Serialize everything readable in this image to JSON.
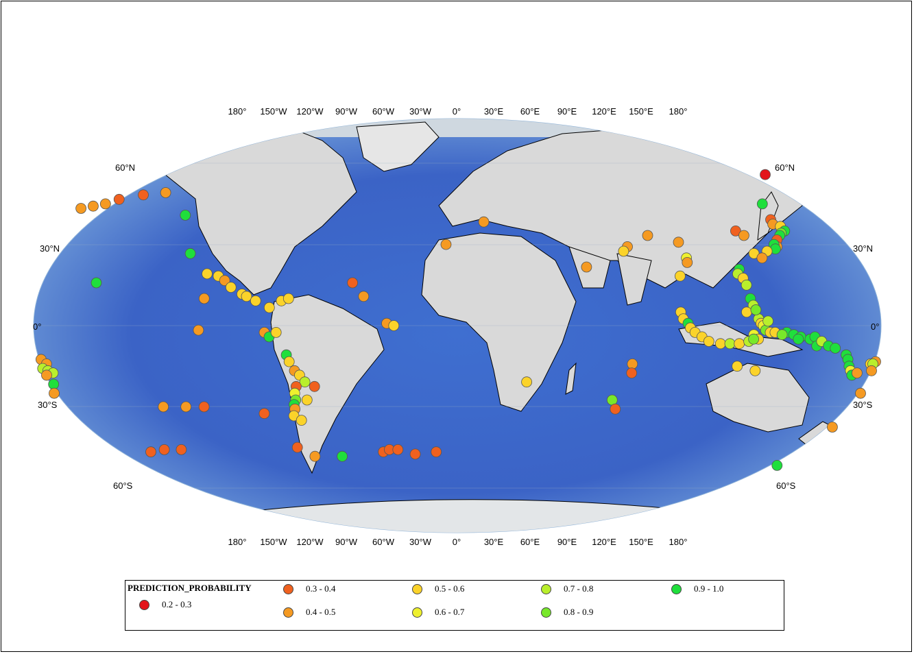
{
  "map": {
    "lon_labels_top": [
      "180°",
      "150°W",
      "120°W",
      "90°W",
      "60°W",
      "30°W",
      "0°",
      "30°E",
      "60°E",
      "90°E",
      "120°E",
      "150°E",
      "180°"
    ],
    "lon_labels_bottom": [
      "180°",
      "150°W",
      "120°W",
      "90°W",
      "60°W",
      "30°W",
      "0°",
      "30°E",
      "60°E",
      "90°E",
      "120°E",
      "150°E",
      "180°"
    ],
    "lat_labels_left": [
      "60°N",
      "30°N",
      "0°",
      "30°S",
      "60°S"
    ],
    "lat_labels_right": [
      "60°N",
      "30°N",
      "0°",
      "30°S",
      "60°S"
    ]
  },
  "legend": {
    "title": "PREDICTION_PROBABILITY",
    "items": [
      {
        "label": "0.2 - 0.3",
        "color": "#e3141b"
      },
      {
        "label": "0.3 - 0.4",
        "color": "#f0611f"
      },
      {
        "label": "0.4 - 0.5",
        "color": "#f59a22"
      },
      {
        "label": "0.5 - 0.6",
        "color": "#fbd32a"
      },
      {
        "label": "0.6 - 0.7",
        "color": "#eef02e"
      },
      {
        "label": "0.7 - 0.8",
        "color": "#b9ef2c"
      },
      {
        "label": "0.8 - 0.9",
        "color": "#78e82a"
      },
      {
        "label": "0.9 - 1.0",
        "color": "#1fdf3c"
      }
    ]
  },
  "points": [
    {
      "lon": 155,
      "lat": 67,
      "c": 0
    },
    {
      "lon": -160,
      "lat": 56,
      "c": 1
    },
    {
      "lon": -150,
      "lat": 58,
      "c": 1
    },
    {
      "lon": -140,
      "lat": 59,
      "c": 2
    },
    {
      "lon": -165,
      "lat": 54,
      "c": 2
    },
    {
      "lon": -170,
      "lat": 53,
      "c": 2
    },
    {
      "lon": -175,
      "lat": 52,
      "c": 2
    },
    {
      "lon": -125,
      "lat": 49,
      "c": 7
    },
    {
      "lon": -117,
      "lat": 32,
      "c": 7
    },
    {
      "lon": -155,
      "lat": 19,
      "c": 7
    },
    {
      "lon": -108,
      "lat": 23,
      "c": 3
    },
    {
      "lon": -103,
      "lat": 22,
      "c": 3
    },
    {
      "lon": -100,
      "lat": 20,
      "c": 2
    },
    {
      "lon": -97,
      "lat": 17,
      "c": 3
    },
    {
      "lon": -92,
      "lat": 14,
      "c": 3
    },
    {
      "lon": -90,
      "lat": 13,
      "c": 3
    },
    {
      "lon": -86,
      "lat": 11,
      "c": 3
    },
    {
      "lon": -80,
      "lat": 8,
      "c": 3
    },
    {
      "lon": -75,
      "lat": 11,
      "c": 3
    },
    {
      "lon": -72,
      "lat": 12,
      "c": 3
    },
    {
      "lon": -108,
      "lat": 12,
      "c": 2
    },
    {
      "lon": -110,
      "lat": -2,
      "c": 2
    },
    {
      "lon": -82,
      "lat": -3,
      "c": 2
    },
    {
      "lon": -80,
      "lat": -5,
      "c": 7
    },
    {
      "lon": -77,
      "lat": -3,
      "c": 3
    },
    {
      "lon": -73,
      "lat": -13,
      "c": 7
    },
    {
      "lon": -72,
      "lat": -16,
      "c": 3
    },
    {
      "lon": -70,
      "lat": -20,
      "c": 2
    },
    {
      "lon": -68,
      "lat": -22,
      "c": 3
    },
    {
      "lon": -66,
      "lat": -25,
      "c": 5
    },
    {
      "lon": -70,
      "lat": -27,
      "c": 1
    },
    {
      "lon": -62,
      "lat": -27,
      "c": 1
    },
    {
      "lon": -71,
      "lat": -30,
      "c": 4
    },
    {
      "lon": -71,
      "lat": -33,
      "c": 6
    },
    {
      "lon": -72,
      "lat": -35,
      "c": 7
    },
    {
      "lon": -72,
      "lat": -37,
      "c": 2
    },
    {
      "lon": -66,
      "lat": -33,
      "c": 3
    },
    {
      "lon": -73,
      "lat": -40,
      "c": 3
    },
    {
      "lon": -70,
      "lat": -42,
      "c": 3
    },
    {
      "lon": -86,
      "lat": -39,
      "c": 1
    },
    {
      "lon": -45,
      "lat": 19,
      "c": 1
    },
    {
      "lon": -40,
      "lat": 13,
      "c": 2
    },
    {
      "lon": -30,
      "lat": 1,
      "c": 2
    },
    {
      "lon": -27,
      "lat": 0,
      "c": 3
    },
    {
      "lon": -130,
      "lat": -36,
      "c": 2
    },
    {
      "lon": -120,
      "lat": -36,
      "c": 2
    },
    {
      "lon": -112,
      "lat": -36,
      "c": 1
    },
    {
      "lon": -145,
      "lat": -56,
      "c": 1
    },
    {
      "lon": -138,
      "lat": -55,
      "c": 1
    },
    {
      "lon": -130,
      "lat": -55,
      "c": 1
    },
    {
      "lon": -75,
      "lat": -54,
      "c": 1
    },
    {
      "lon": -68,
      "lat": -58,
      "c": 2
    },
    {
      "lon": -55,
      "lat": -58,
      "c": 7
    },
    {
      "lon": -35,
      "lat": -56,
      "c": 1
    },
    {
      "lon": -32,
      "lat": -55,
      "c": 1
    },
    {
      "lon": -28,
      "lat": -55,
      "c": 1
    },
    {
      "lon": -20,
      "lat": -57,
      "c": 1
    },
    {
      "lon": -10,
      "lat": -56,
      "c": 1
    },
    {
      "lon": -178,
      "lat": -15,
      "c": 2
    },
    {
      "lon": -176,
      "lat": -17,
      "c": 2
    },
    {
      "lon": -178,
      "lat": -19,
      "c": 5
    },
    {
      "lon": -176,
      "lat": -20,
      "c": 5
    },
    {
      "lon": -174,
      "lat": -21,
      "c": 5
    },
    {
      "lon": -177,
      "lat": -22,
      "c": 2
    },
    {
      "lon": -175,
      "lat": -26,
      "c": 7
    },
    {
      "lon": -176,
      "lat": -30,
      "c": 2
    },
    {
      "lon": 12,
      "lat": 46,
      "c": 2
    },
    {
      "lon": -5,
      "lat": 36,
      "c": 2
    },
    {
      "lon": 30,
      "lat": -25,
      "c": 3
    },
    {
      "lon": 68,
      "lat": -33,
      "c": 6
    },
    {
      "lon": 70,
      "lat": -37,
      "c": 1
    },
    {
      "lon": 75,
      "lat": -17,
      "c": 2
    },
    {
      "lon": 75,
      "lat": -21,
      "c": 1
    },
    {
      "lon": 56,
      "lat": 26,
      "c": 2
    },
    {
      "lon": 85,
      "lat": 40,
      "c": 2
    },
    {
      "lon": 98,
      "lat": 37,
      "c": 2
    },
    {
      "lon": 75,
      "lat": 35,
      "c": 2
    },
    {
      "lon": 73,
      "lat": 33,
      "c": 3
    },
    {
      "lon": 100,
      "lat": 30,
      "c": 4
    },
    {
      "lon": 100,
      "lat": 28,
      "c": 2
    },
    {
      "lon": 96,
      "lat": 22,
      "c": 3
    },
    {
      "lon": 143,
      "lat": 54,
      "c": 7
    },
    {
      "lon": 143,
      "lat": 47,
      "c": 1
    },
    {
      "lon": 143,
      "lat": 45,
      "c": 2
    },
    {
      "lon": 146,
      "lat": 44,
      "c": 3
    },
    {
      "lon": 147,
      "lat": 42,
      "c": 7
    },
    {
      "lon": 145,
      "lat": 41,
      "c": 6
    },
    {
      "lon": 144,
      "lat": 40,
      "c": 7
    },
    {
      "lon": 142,
      "lat": 38,
      "c": 1
    },
    {
      "lon": 141,
      "lat": 35,
      "c": 2
    },
    {
      "lon": 140,
      "lat": 36,
      "c": 7
    },
    {
      "lon": 140,
      "lat": 34,
      "c": 7
    },
    {
      "lon": 136,
      "lat": 33,
      "c": 3
    },
    {
      "lon": 130,
      "lat": 32,
      "c": 3
    },
    {
      "lon": 133,
      "lat": 30,
      "c": 2
    },
    {
      "lon": 125,
      "lat": 42,
      "c": 1
    },
    {
      "lon": 128,
      "lat": 40,
      "c": 2
    },
    {
      "lon": 122,
      "lat": 25,
      "c": 7
    },
    {
      "lon": 121,
      "lat": 23,
      "c": 5
    },
    {
      "lon": 123,
      "lat": 21,
      "c": 3
    },
    {
      "lon": 124,
      "lat": 18,
      "c": 5
    },
    {
      "lon": 125,
      "lat": 12,
      "c": 7
    },
    {
      "lon": 126,
      "lat": 9,
      "c": 5
    },
    {
      "lon": 127,
      "lat": 7,
      "c": 7
    },
    {
      "lon": 123,
      "lat": 6,
      "c": 3
    },
    {
      "lon": 128,
      "lat": 3,
      "c": 5
    },
    {
      "lon": 129,
      "lat": 1,
      "c": 3
    },
    {
      "lon": 130,
      "lat": 0,
      "c": 4
    },
    {
      "lon": 131,
      "lat": -2,
      "c": 6
    },
    {
      "lon": 133,
      "lat": -3,
      "c": 3
    },
    {
      "lon": 126,
      "lat": -4,
      "c": 4
    },
    {
      "lon": 95,
      "lat": 6,
      "c": 3
    },
    {
      "lon": 96,
      "lat": 3,
      "c": 3
    },
    {
      "lon": 98,
      "lat": 1,
      "c": 7
    },
    {
      "lon": 99,
      "lat": -1,
      "c": 3
    },
    {
      "lon": 101,
      "lat": -3,
      "c": 3
    },
    {
      "lon": 104,
      "lat": -5,
      "c": 3
    },
    {
      "lon": 107,
      "lat": -7,
      "c": 3
    },
    {
      "lon": 112,
      "lat": -8,
      "c": 3
    },
    {
      "lon": 116,
      "lat": -8,
      "c": 5
    },
    {
      "lon": 120,
      "lat": -8,
      "c": 3
    },
    {
      "lon": 124,
      "lat": -7,
      "c": 5
    },
    {
      "lon": 128,
      "lat": -6,
      "c": 3
    },
    {
      "lon": 135,
      "lat": -3,
      "c": 3
    },
    {
      "lon": 140,
      "lat": -3,
      "c": 7
    },
    {
      "lon": 143,
      "lat": -4,
      "c": 7
    },
    {
      "lon": 146,
      "lat": -5,
      "c": 7
    },
    {
      "lon": 150,
      "lat": -6,
      "c": 7
    },
    {
      "lon": 152,
      "lat": -5,
      "c": 7
    },
    {
      "lon": 153,
      "lat": -9,
      "c": 7
    },
    {
      "lon": 155,
      "lat": -7,
      "c": 5
    },
    {
      "lon": 158,
      "lat": -9,
      "c": 7
    },
    {
      "lon": 161,
      "lat": -10,
      "c": 7
    },
    {
      "lon": 166,
      "lat": -13,
      "c": 7
    },
    {
      "lon": 167,
      "lat": -15,
      "c": 7
    },
    {
      "lon": 168,
      "lat": -18,
      "c": 7
    },
    {
      "lon": 169,
      "lat": -20,
      "c": 4
    },
    {
      "lon": 170,
      "lat": -22,
      "c": 7
    },
    {
      "lon": 172,
      "lat": -21,
      "c": 2
    },
    {
      "lon": 177,
      "lat": -17,
      "c": 3
    },
    {
      "lon": 179,
      "lat": -16,
      "c": 2
    },
    {
      "lon": 178,
      "lat": -17,
      "c": 5
    },
    {
      "lon": 176,
      "lat": -30,
      "c": 2
    },
    {
      "lon": 178,
      "lat": -20,
      "c": 2
    },
    {
      "lon": 127,
      "lat": 7,
      "c": 6
    },
    {
      "lon": 126,
      "lat": -6,
      "c": 6
    },
    {
      "lon": 138,
      "lat": -4,
      "c": 6
    },
    {
      "lon": 145,
      "lat": -6,
      "c": 7
    },
    {
      "lon": 132,
      "lat": 2,
      "c": 5
    },
    {
      "lon": 170,
      "lat": -45,
      "c": 2
    },
    {
      "lon": 156,
      "lat": -62,
      "c": 7
    },
    {
      "lon": 128,
      "lat": -20,
      "c": 3
    },
    {
      "lon": 120,
      "lat": -18,
      "c": 3
    }
  ]
}
